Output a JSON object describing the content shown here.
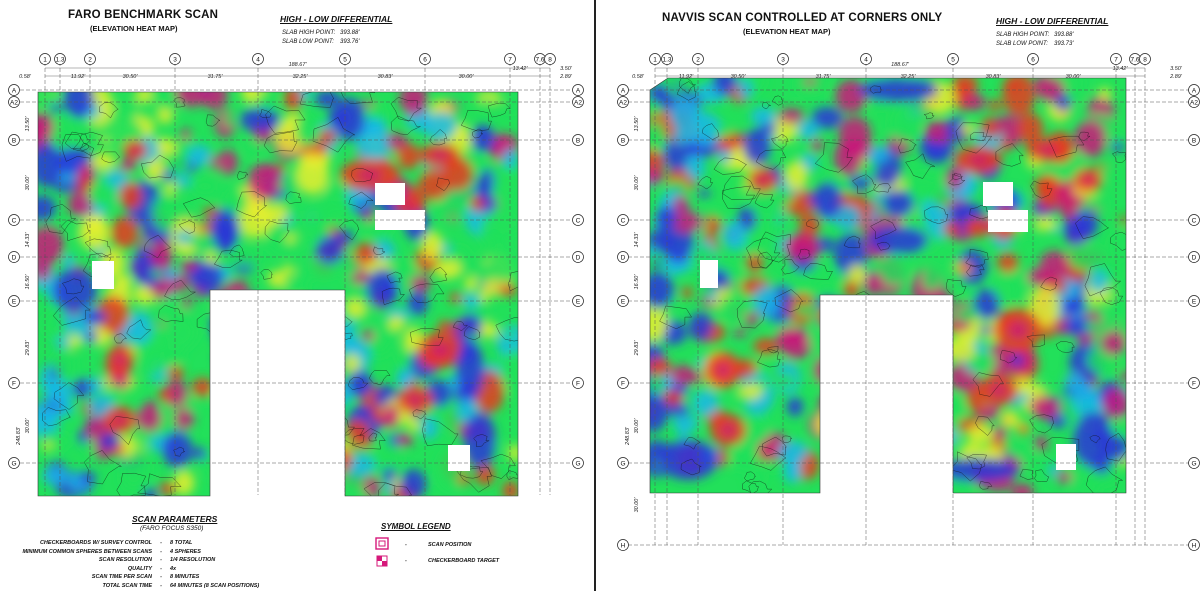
{
  "left": {
    "title": "FARO BENCHMARK SCAN",
    "subtitle": "(ELEVATION HEAT MAP)",
    "differential": {
      "title": "HIGH - LOW DIFFERENTIAL",
      "high_label": "SLAB HIGH POINT:",
      "high_value": "393.88'",
      "low_label": "SLAB LOW POINT:",
      "low_value": "393.76'"
    },
    "columns": [
      "1",
      "1.3",
      "2",
      "3",
      "4",
      "5",
      "6",
      "7",
      "7.6",
      "8"
    ],
    "rows": [
      "A",
      "A2",
      "B",
      "C",
      "D",
      "E",
      "F",
      "G"
    ],
    "overall_dim": "188.67'",
    "bay_dims": [
      "0.58'",
      "11.92'",
      "30.50'",
      "31.75'",
      "32.25'",
      "30.83'",
      "30.00'",
      "13.42'",
      "3.50'",
      "2.89'"
    ],
    "row_dims": [
      "13.50'",
      "30.00'",
      "14.33'",
      "16.50'",
      "29.83'",
      "30.00'",
      "248.83'"
    ],
    "scan_parameters": {
      "title": "SCAN PARAMETERS",
      "subtitle": "(FARO FOCUS S350)",
      "items": [
        {
          "label": "CHECKERBOARDS W/ SURVEY CONTROL",
          "value": "8 TOTAL"
        },
        {
          "label": "MINIMUM COMMON SPHERES BETWEEN SCANS",
          "value": "4 SPHERES"
        },
        {
          "label": "SCAN RESOLUTION",
          "value": "1/4 RESOLUTION"
        },
        {
          "label": "QUALITY",
          "value": "4x"
        },
        {
          "label": "SCAN TIME PER SCAN",
          "value": "8 MINUTES"
        },
        {
          "label": "TOTAL SCAN TIME",
          "value": "64 MINUTES (8 SCAN POSITIONS)"
        }
      ]
    },
    "legend": {
      "title": "SYMBOL LEGEND",
      "items": [
        {
          "label": "SCAN POSITION",
          "icon": "scan-position-icon"
        },
        {
          "label": "CHECKERBOARD TARGET",
          "icon": "checkerboard-target-icon"
        }
      ]
    }
  },
  "right": {
    "title": "NAVVIS SCAN CONTROLLED AT CORNERS ONLY",
    "subtitle": "(ELEVATION HEAT MAP)",
    "differential": {
      "title": "HIGH - LOW DIFFERENTIAL",
      "high_label": "SLAB HIGH POINT:",
      "high_value": "393.88'",
      "low_label": "SLAB LOW POINT:",
      "low_value": "393.73'"
    },
    "columns": [
      "1",
      "1.3",
      "2",
      "3",
      "4",
      "5",
      "6",
      "7",
      "7.6",
      "8"
    ],
    "rows": [
      "A",
      "A2",
      "B",
      "C",
      "D",
      "E",
      "F",
      "G",
      "H"
    ],
    "overall_dim": "188.67'",
    "bay_dims": [
      "0.58'",
      "11.92'",
      "30.50'",
      "31.75'",
      "32.25'",
      "30.83'",
      "30.00'",
      "13.42'",
      "3.50'",
      "2.89'"
    ],
    "row_dims": [
      "13.50'",
      "30.00'",
      "14.33'",
      "16.50'",
      "29.83'",
      "30.00'",
      "248.83'",
      "30.00'"
    ]
  },
  "colors": {
    "low": "#2a35d8",
    "mid_low": "#19b8e8",
    "mid": "#22e05a",
    "mid_high": "#e8ee30",
    "high": "#e83a1e",
    "peak": "#c9177a",
    "symbol": "#d6187a"
  }
}
